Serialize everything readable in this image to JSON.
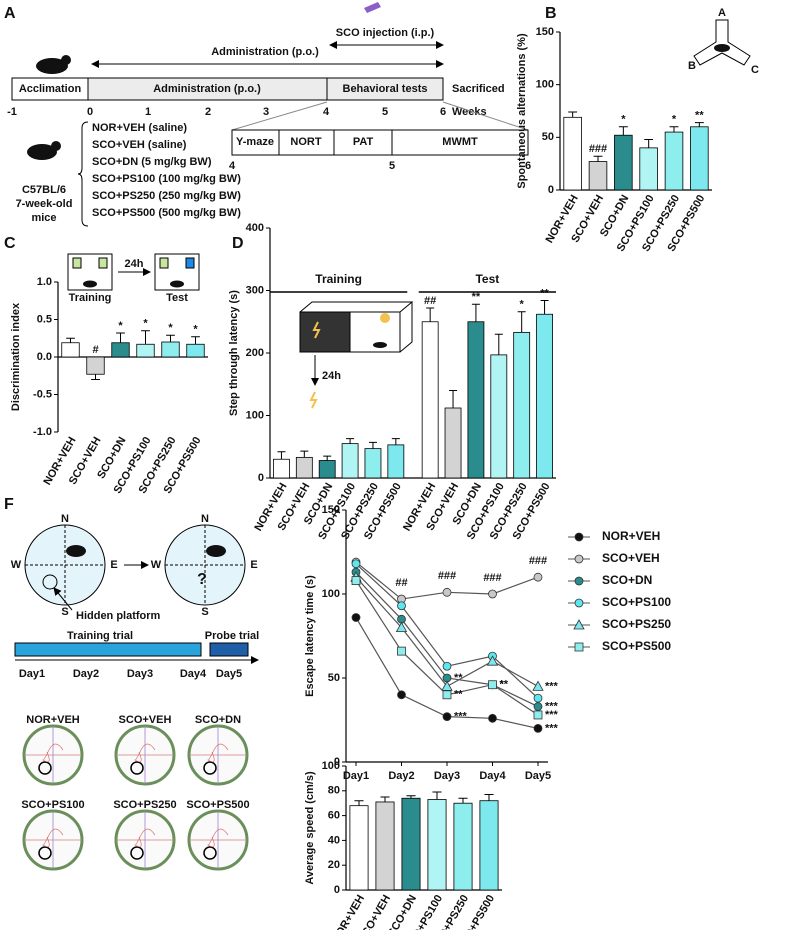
{
  "panel_labels": [
    "A",
    "B",
    "C",
    "D",
    "F"
  ],
  "timeline": {
    "injection": "SCO injection (i.p.)",
    "administration_arrow": "Administration (p.o.)",
    "segments": [
      "Acclimation",
      "Administration (p.o.)",
      "Behavioral tests"
    ],
    "sacrificed": "Sacrificed",
    "weeks_label": "Weeks",
    "weeks": [
      -1,
      0,
      1,
      2,
      3,
      4,
      5,
      6
    ],
    "tests": [
      "Y-maze",
      "NORT",
      "PAT",
      "MWMT"
    ],
    "test_weeks": [
      4,
      5,
      6
    ],
    "mice": [
      "C57BL/6",
      "7-week-old",
      "mice"
    ],
    "groups": [
      "NOR+VEH (saline)",
      "SCO+VEH (saline)",
      "SCO+DN (5 mg/kg BW)",
      "SCO+PS100 (100 mg/kg BW)",
      "SCO+PS250 (250 mg/kg BW)",
      "SCO+PS500 (500 mg/kg BW)"
    ]
  },
  "ymaze_arms": [
    "A",
    "B",
    "C"
  ],
  "nort_scheme": {
    "training": "Training",
    "delay": "24h",
    "test": "Test"
  },
  "pat_scheme": {
    "delay": "24h"
  },
  "mwm_scheme": {
    "directions": [
      "N",
      "S",
      "W",
      "E"
    ],
    "platform": "Hidden platform",
    "probe_mark": "?",
    "training": "Training trial",
    "probe": "Probe trial",
    "days": [
      "Day1",
      "Day2",
      "Day3",
      "Day4",
      "Day5"
    ]
  },
  "track_labels": [
    "NOR+VEH",
    "SCO+VEH",
    "SCO+DN",
    "SCO+PS100",
    "SCO+PS250",
    "SCO+PS500"
  ],
  "chart_data": [
    {
      "type": "bar",
      "ylabel": "Spontaneous alternations (%)",
      "categories": [
        "NOR+VEH",
        "SCO+VEH",
        "SCO+DN",
        "SCO+PS100",
        "SCO+PS250",
        "SCO+PS500"
      ],
      "values": [
        69,
        27,
        52,
        40,
        55,
        60
      ],
      "errors": [
        5,
        5,
        8,
        8,
        5,
        4
      ],
      "colors": [
        "#ffffff",
        "#d3d3d3",
        "#2a8c8c",
        "#b0f4f4",
        "#8eeeee",
        "#7de8ee"
      ],
      "annotations": [
        null,
        "###",
        "*",
        null,
        "*",
        "**"
      ],
      "ylim": [
        0,
        150
      ],
      "yticks": [
        0,
        50,
        100,
        150
      ]
    },
    {
      "type": "bar",
      "ylabel": "Discrimination index",
      "categories": [
        "NOR+VEH",
        "SCO+VEH",
        "SCO+DN",
        "SCO+PS100",
        "SCO+PS250",
        "SCO+PS500"
      ],
      "values": [
        0.19,
        -0.23,
        0.19,
        0.17,
        0.2,
        0.17
      ],
      "errors": [
        0.06,
        0.07,
        0.13,
        0.18,
        0.09,
        0.1
      ],
      "colors": [
        "#ffffff",
        "#d3d3d3",
        "#2a8c8c",
        "#b0f4f4",
        "#8eeeee",
        "#7de8ee"
      ],
      "annotations": [
        null,
        "#",
        "*",
        "*",
        "*",
        "*"
      ],
      "ylim": [
        -1,
        1
      ],
      "yticks": [
        {
          "value": -1,
          "label": "-1.0"
        },
        {
          "value": -0.5,
          "label": "-0.5"
        },
        {
          "value": 0,
          "label": "0.0"
        },
        {
          "value": 0.5,
          "label": "0.5"
        },
        {
          "value": 1,
          "label": "1.0"
        }
      ]
    },
    {
      "type": "bar",
      "ylabel": "Step through latency (s)",
      "groups": [
        "Training",
        "Test"
      ],
      "categories": [
        "NOR+VEH",
        "SCO+VEH",
        "SCO+DN",
        "SCO+PS100",
        "SCO+PS250",
        "SCO+PS500",
        "NOR+VEH",
        "SCO+VEH",
        "SCO+DN",
        "SCO+PS100",
        "SCO+PS250",
        "SCO+PS500"
      ],
      "values": [
        30,
        33,
        28,
        55,
        47,
        53,
        250,
        112,
        250,
        197,
        233,
        262
      ],
      "errors": [
        12,
        10,
        7,
        8,
        10,
        10,
        22,
        28,
        28,
        33,
        33,
        22
      ],
      "colors": [
        "#ffffff",
        "#d3d3d3",
        "#2a8c8c",
        "#b0f4f4",
        "#8eeeee",
        "#7de8ee",
        "#ffffff",
        "#d3d3d3",
        "#2a8c8c",
        "#b0f4f4",
        "#8eeeee",
        "#7de8ee"
      ],
      "annotations": [
        null,
        null,
        null,
        null,
        null,
        null,
        "##",
        null,
        "**",
        null,
        "*",
        "**"
      ],
      "ylim": [
        0,
        400
      ],
      "yticks": [
        0,
        100,
        200,
        300,
        400
      ]
    },
    {
      "type": "line",
      "ylabel": "Escape latency time (s)",
      "categories": [
        "Day1",
        "Day2",
        "Day3",
        "Day4",
        "Day5"
      ],
      "series": [
        {
          "name": "NOR+VEH",
          "color": "#111111",
          "marker": "circle",
          "values": [
            86,
            40,
            27,
            26,
            20
          ],
          "annotations": [
            null,
            null,
            "***",
            null,
            "***"
          ]
        },
        {
          "name": "SCO+VEH",
          "color": "#c8c8c8",
          "marker": "circle",
          "values": [
            119,
            97,
            101,
            100,
            110
          ],
          "annotations": [
            null,
            "##",
            "###",
            "###",
            "###"
          ]
        },
        {
          "name": "SCO+DN",
          "color": "#2a8c8c",
          "marker": "circle",
          "values": [
            113,
            85,
            50,
            46,
            33
          ],
          "annotations": [
            null,
            null,
            "**",
            "**",
            "***"
          ]
        },
        {
          "name": "SCO+PS100",
          "color": "#5ee6f0",
          "marker": "circle",
          "values": [
            118,
            93,
            57,
            63,
            38
          ],
          "annotations": [
            null,
            null,
            null,
            null,
            null
          ]
        },
        {
          "name": "SCO+PS250",
          "color": "#7de8ee",
          "marker": "triangle",
          "values": [
            110,
            80,
            45,
            60,
            45
          ],
          "annotations": [
            null,
            null,
            null,
            null,
            "***"
          ]
        },
        {
          "name": "SCO+PS500",
          "color": "#8eeeee",
          "marker": "square",
          "values": [
            108,
            66,
            40,
            46,
            28
          ],
          "annotations": [
            null,
            null,
            "**",
            "*",
            "***"
          ]
        }
      ],
      "legend": "right",
      "ylim": [
        0,
        150
      ],
      "yticks": [
        0,
        50,
        100,
        150
      ]
    },
    {
      "type": "bar",
      "ylabel": "Average speed (cm/s)",
      "categories": [
        "NOR+VEH",
        "SCO+VEH",
        "SCO+DN",
        "SCO+PS100",
        "SCO+PS250",
        "SCO+PS500"
      ],
      "values": [
        68,
        71,
        74,
        73,
        70,
        72
      ],
      "errors": [
        4,
        4,
        2,
        6,
        4,
        5
      ],
      "colors": [
        "#ffffff",
        "#d3d3d3",
        "#2a8c8c",
        "#b0f4f4",
        "#8eeeee",
        "#7de8ee"
      ],
      "annotations": [
        null,
        null,
        null,
        null,
        null,
        null
      ],
      "ylim": [
        0,
        100
      ],
      "yticks": [
        0,
        20,
        40,
        60,
        80,
        100
      ]
    }
  ]
}
